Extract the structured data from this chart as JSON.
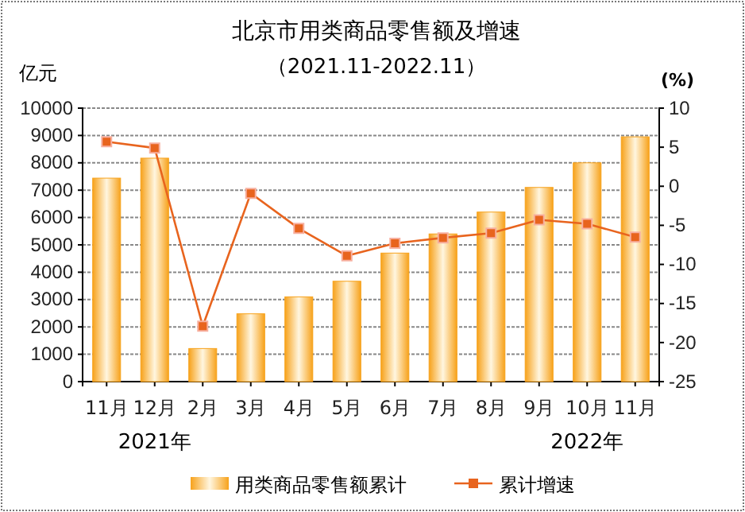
{
  "chart_data": {
    "type": "bar",
    "title": "北京市用类商品零售额及增速",
    "subtitle": "（2021.11-2022.11）",
    "ylabel": "亿元",
    "y2label": "(%)",
    "categories": [
      "11月",
      "12月",
      "2月",
      "3月",
      "4月",
      "5月",
      "6月",
      "7月",
      "8月",
      "9月",
      "10月",
      "11月"
    ],
    "series": [
      {
        "name": "用类商品零售额累计",
        "color": "#f7a21b",
        "values": [
          7440,
          8170,
          1210,
          2480,
          3100,
          3670,
          4700,
          5400,
          6200,
          7100,
          8000,
          8950
        ]
      },
      {
        "name": "累计增速",
        "type": "line",
        "axis": "y2",
        "color": "#e8641e",
        "marker": "square",
        "values": [
          5.7,
          4.9,
          -17.9,
          -0.9,
          -5.4,
          -8.9,
          -7.3,
          -6.6,
          -6.0,
          -4.3,
          -4.8,
          -6.5
        ]
      }
    ],
    "ylim": [
      0,
      10000
    ],
    "yticks": [
      0,
      1000,
      2000,
      3000,
      4000,
      5000,
      6000,
      7000,
      8000,
      9000,
      10000
    ],
    "y2lim": [
      -25,
      10
    ],
    "y2ticks": [
      -25,
      -20,
      -15,
      -10,
      -5,
      0,
      5,
      10
    ],
    "grid": "y",
    "legend": "bottom",
    "annotations": [
      "2021年",
      "2022年"
    ]
  }
}
